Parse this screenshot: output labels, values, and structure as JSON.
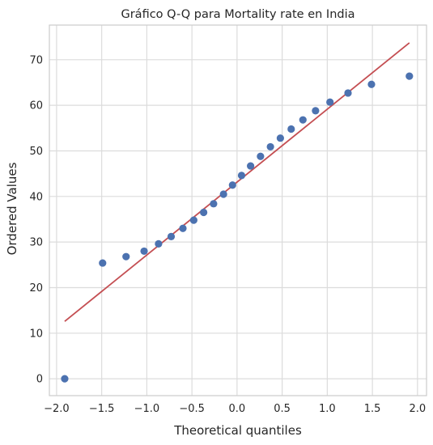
{
  "chart_data": {
    "type": "scatter",
    "title": "Gráfico Q-Q para Mortality rate en India",
    "xlabel": "Theoretical quantiles",
    "ylabel": "Ordered Values",
    "xlim": [
      -2.08,
      2.1
    ],
    "ylim": [
      -3.7,
      77.6
    ],
    "xticks": [
      -2.0,
      -1.5,
      -1.0,
      -0.5,
      0.0,
      0.5,
      1.0,
      1.5,
      2.0
    ],
    "xtick_labels": [
      "−2.0",
      "−1.5",
      "−1.0",
      "−0.5",
      "0.0",
      "0.5",
      "1.0",
      "1.5",
      "2.0"
    ],
    "yticks": [
      0,
      10,
      20,
      30,
      40,
      50,
      60,
      70
    ],
    "ytick_labels": [
      "0",
      "10",
      "20",
      "30",
      "40",
      "50",
      "60",
      "70"
    ],
    "grid": true,
    "series": [
      {
        "kind": "points",
        "color": "#4c72b0",
        "x": [
          -1.91,
          -1.49,
          -1.23,
          -1.03,
          -0.87,
          -0.73,
          -0.6,
          -0.48,
          -0.37,
          -0.26,
          -0.15,
          -0.05,
          0.05,
          0.15,
          0.26,
          0.37,
          0.48,
          0.6,
          0.73,
          0.87,
          1.03,
          1.23,
          1.49,
          1.91
        ],
        "y": [
          0.0,
          25.4,
          26.8,
          28.0,
          29.6,
          31.2,
          33.0,
          34.8,
          36.5,
          38.4,
          40.5,
          42.5,
          44.6,
          46.7,
          48.8,
          50.9,
          52.8,
          54.8,
          56.8,
          58.8,
          60.7,
          62.7,
          64.6,
          66.4
        ]
      },
      {
        "kind": "fit-line",
        "color": "#c44e52",
        "x": [
          -1.91,
          1.91
        ],
        "y": [
          12.6,
          73.7
        ]
      }
    ]
  }
}
